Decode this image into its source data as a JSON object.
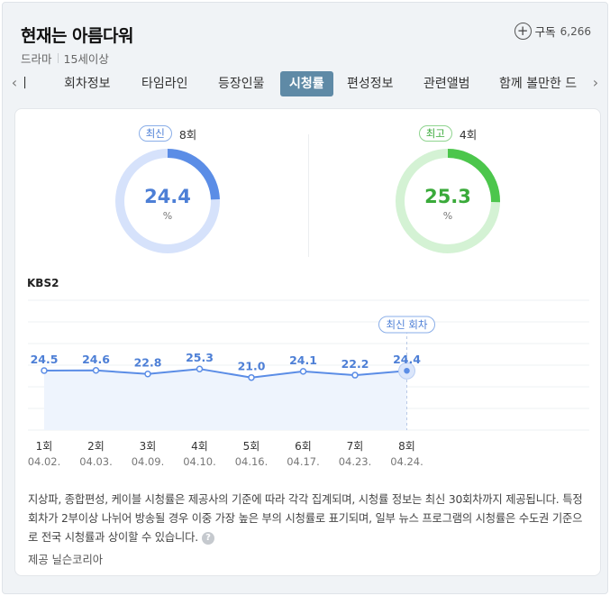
{
  "header": {
    "title": "현재는 아름다워",
    "genre": "드라마",
    "rating": "15세이상",
    "subscribe_label": "구독",
    "subscribe_count": "6,266"
  },
  "tabs": [
    {
      "label": "기"
    },
    {
      "label": "회차정보"
    },
    {
      "label": "타임라인"
    },
    {
      "label": "등장인물"
    },
    {
      "label": "시청률",
      "active": true
    },
    {
      "label": "편성정보"
    },
    {
      "label": "관련앨범"
    },
    {
      "label": "함께 볼만한 드"
    }
  ],
  "gauges": {
    "latest": {
      "badge": "최신",
      "episode": "8회",
      "value": "24.4",
      "unit": "%",
      "fraction": 0.244,
      "color": "#5b8de6",
      "track": "#d6e2fb"
    },
    "best": {
      "badge": "최고",
      "episode": "4회",
      "value": "25.3",
      "unit": "%",
      "fraction": 0.253,
      "color": "#4cc64c",
      "track": "#d4f2d4"
    }
  },
  "chart_data": {
    "type": "line",
    "network": "KBS2",
    "x": [
      "1회",
      "2회",
      "3회",
      "4회",
      "5회",
      "6회",
      "7회",
      "8회"
    ],
    "dates": [
      "04.02.",
      "04.03.",
      "04.09.",
      "04.10.",
      "04.16.",
      "04.17.",
      "04.23.",
      "04.24."
    ],
    "values": [
      24.5,
      24.6,
      22.8,
      25.3,
      21.0,
      24.1,
      22.2,
      24.4
    ],
    "latest_label": "최신 회차",
    "grid": true
  },
  "note": "지상파, 종합편성, 케이블 시청률은 제공사의 기준에 따라 각각 집계되며, 시청률 정보는 최신 30회차까지 제공됩니다. 특정 회차가 2부이상 나뉘어 방송될 경우 이중 가장 높은 부의 시청률로 표기되며, 일부 뉴스 프로그램의 시청률은 수도권 기준으로 전국 시청률과 상이할 수 있습니다.",
  "source": "제공 닐슨코리아"
}
